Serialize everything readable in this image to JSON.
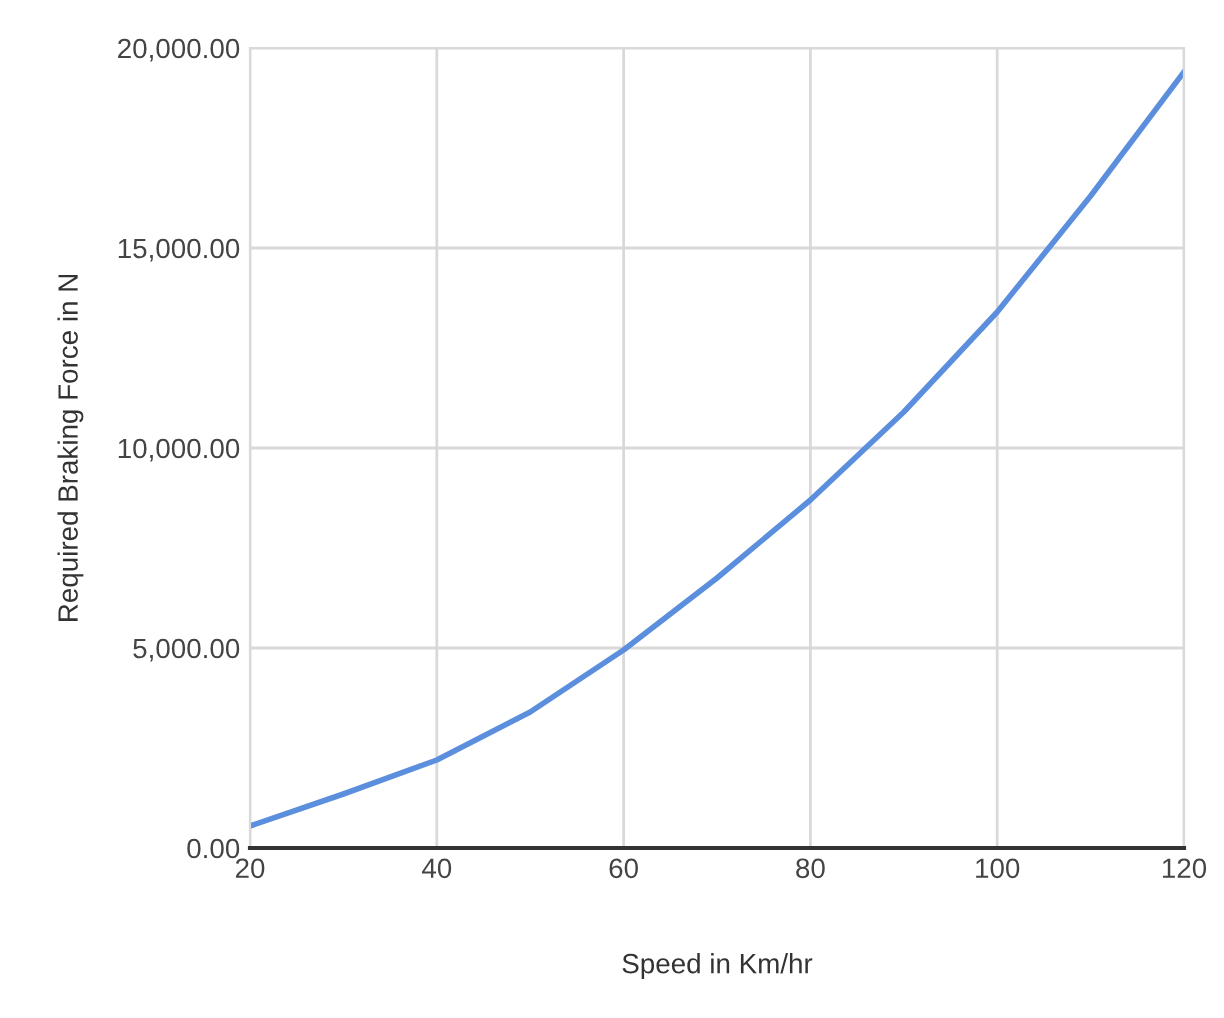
{
  "chart_data": {
    "type": "line",
    "xlabel": "Speed in Km/hr",
    "ylabel": "Required Braking Force in N",
    "x": [
      20,
      30,
      40,
      50,
      60,
      70,
      80,
      90,
      100,
      110,
      120
    ],
    "series": [
      {
        "color": "#5b8fde",
        "values": [
          550,
          1350,
          2200,
          3400,
          4950,
          6750,
          8700,
          10900,
          13400,
          16300,
          19400
        ]
      }
    ],
    "xlim": [
      20,
      120
    ],
    "xticks": [
      20,
      40,
      60,
      80,
      100,
      120
    ],
    "ylim": [
      0,
      20000
    ],
    "yticks": [
      {
        "value": 0,
        "label": "0.00"
      },
      {
        "value": 5000,
        "label": "5,000.00"
      },
      {
        "value": 10000,
        "label": "10,000.00"
      },
      {
        "value": 15000,
        "label": "15,000.00"
      },
      {
        "value": 20000,
        "label": "20,000.00"
      }
    ],
    "grid": true,
    "marker": "none",
    "line_style": "solid"
  }
}
